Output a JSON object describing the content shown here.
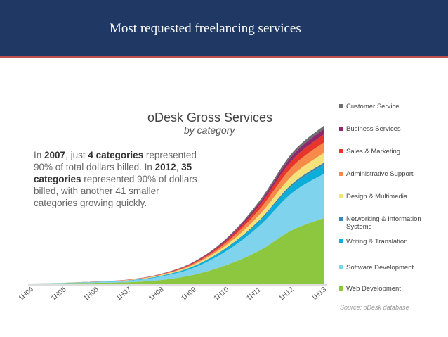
{
  "slide": {
    "title": "Most requested freelancing services"
  },
  "annotation": {
    "line1_pre": "In ",
    "year1": "2007",
    "line1_mid": ", just ",
    "count1": "4 categories",
    "line1_post": " represented 90% of total dollars billed. In ",
    "year2": "2012",
    "line2_mid": ", ",
    "count2": "35 categories",
    "line2_post": " represented 90% of dollars billed, with another 41 smaller categories growing quickly."
  },
  "source": "Source: oDesk database",
  "chart_data": {
    "type": "area",
    "stacked": true,
    "title": "oDesk Gross Services",
    "subtitle": "by category",
    "xlabel": "",
    "ylabel": "",
    "y_axis_shown": false,
    "grid": false,
    "legend_position": "right",
    "categories": [
      "1H04",
      "1H05",
      "1H06",
      "1H07",
      "1H08",
      "1H09",
      "1H10",
      "1H11",
      "1H12",
      "1H13"
    ],
    "series": [
      {
        "name": "Web Development",
        "color": "#8dc63f",
        "values": [
          0,
          0.3,
          0.8,
          1.5,
          4,
          10,
          21,
          37,
          60,
          74
        ]
      },
      {
        "name": "Software Development",
        "color": "#7fd3ec",
        "values": [
          0,
          0.4,
          0.9,
          1.6,
          4,
          8,
          16,
          28,
          42,
          50
        ]
      },
      {
        "name": "Writing & Translation",
        "color": "#0aaed8",
        "values": [
          0,
          0.1,
          0.2,
          0.4,
          0.8,
          1.6,
          3,
          5,
          8,
          10
        ]
      },
      {
        "name": "Networking & Information Systems",
        "color": "#3b86b2",
        "values": [
          0,
          0,
          0.05,
          0.1,
          0.2,
          0.4,
          0.8,
          1.4,
          2.2,
          2.6
        ]
      },
      {
        "name": "Design & Multimedia",
        "color": "#f6e27a",
        "values": [
          0,
          0.1,
          0.2,
          0.4,
          0.8,
          1.6,
          3,
          6,
          9,
          11
        ]
      },
      {
        "name": "Administrative Support",
        "color": "#f58a4b",
        "values": [
          0,
          0,
          0.1,
          0.2,
          0.5,
          1.2,
          3,
          6,
          10,
          12
        ]
      },
      {
        "name": "Sales & Marketing",
        "color": "#e8352c",
        "values": [
          0,
          0,
          0.1,
          0.2,
          0.4,
          1,
          2.2,
          4.5,
          7.5,
          9
        ]
      },
      {
        "name": "Business Services",
        "color": "#8e2a6b",
        "values": [
          0,
          0,
          0.05,
          0.1,
          0.3,
          0.6,
          1.4,
          3,
          5,
          6
        ]
      },
      {
        "name": "Customer Service",
        "color": "#6d6e71",
        "values": [
          0,
          0,
          0.05,
          0.1,
          0.2,
          0.5,
          1,
          2,
          3.2,
          3.8
        ]
      }
    ]
  }
}
